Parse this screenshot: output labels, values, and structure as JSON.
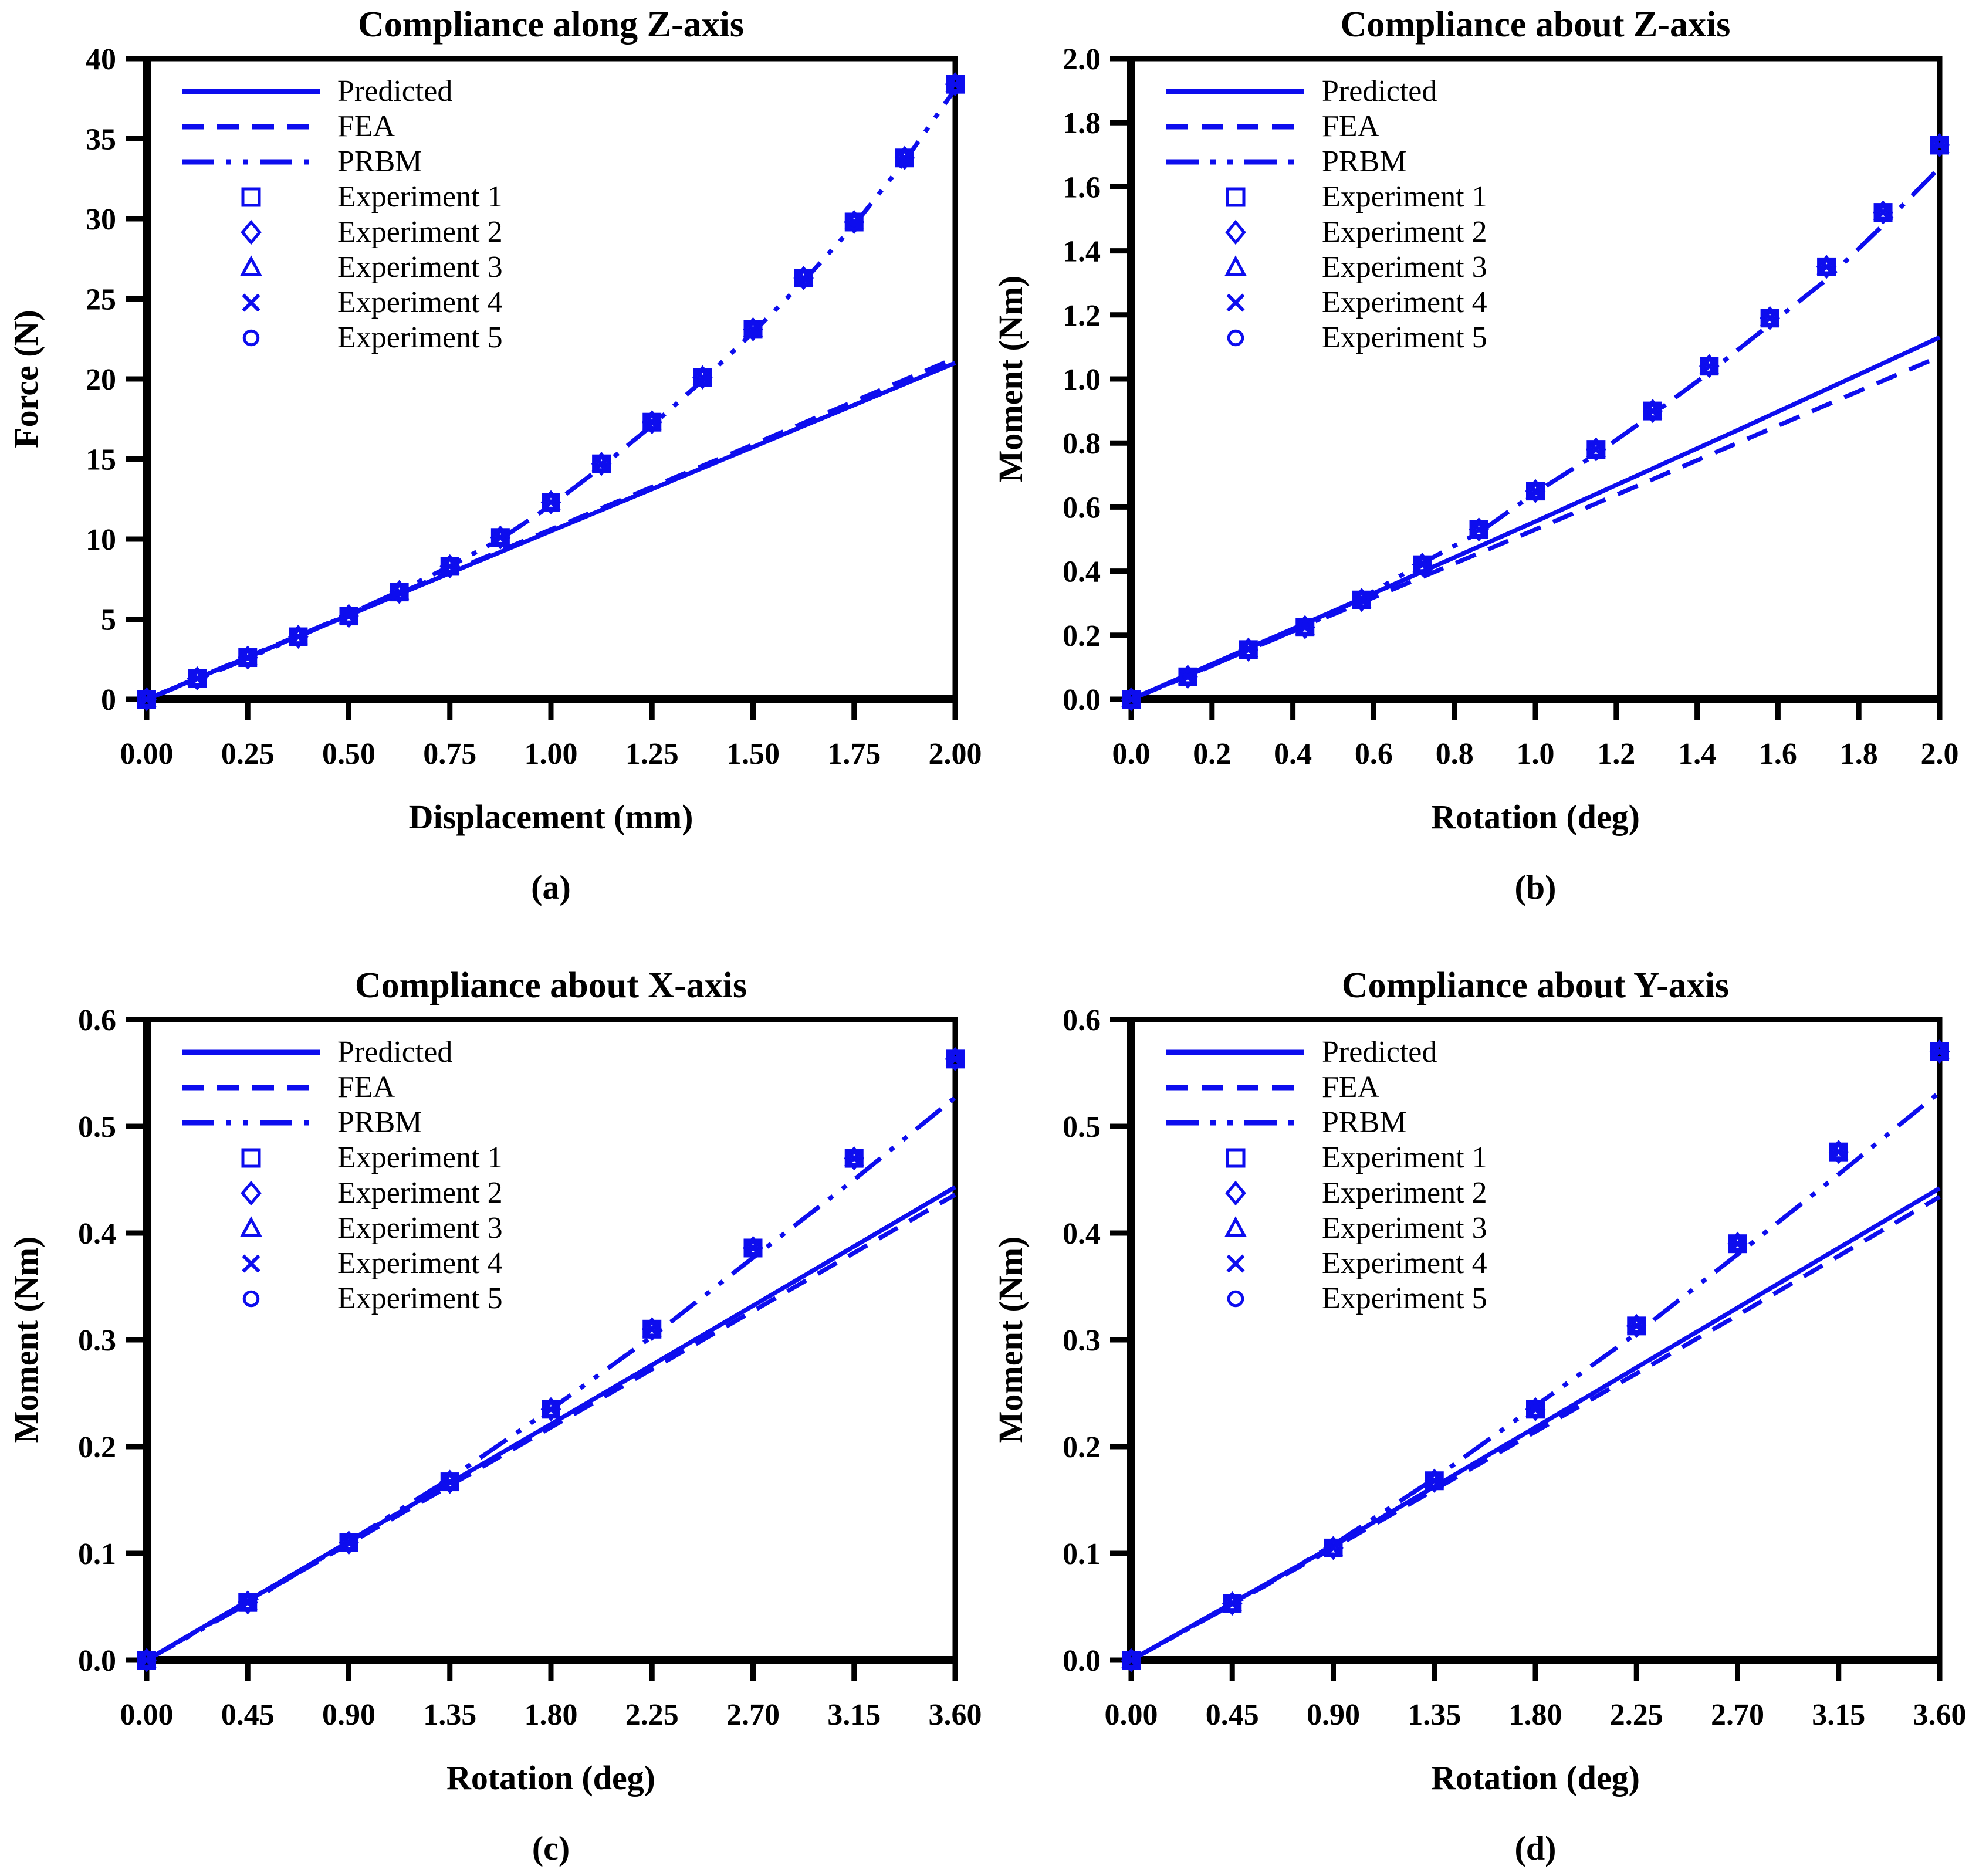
{
  "figure": {
    "background": "#ffffff",
    "accent_color": "#0d0dee",
    "frame_color": "#000000",
    "legend": [
      {
        "label": "Predicted",
        "kind": "line",
        "style": "solid"
      },
      {
        "label": "FEA",
        "kind": "line",
        "style": "dashed"
      },
      {
        "label": "PRBM",
        "kind": "line",
        "style": "dashdotdot"
      },
      {
        "label": "Experiment 1",
        "kind": "marker",
        "marker": "square"
      },
      {
        "label": "Experiment 2",
        "kind": "marker",
        "marker": "diamond"
      },
      {
        "label": "Experiment 3",
        "kind": "marker",
        "marker": "triangle"
      },
      {
        "label": "Experiment 4",
        "kind": "marker",
        "marker": "x"
      },
      {
        "label": "Experiment 5",
        "kind": "marker",
        "marker": "circle"
      }
    ]
  },
  "chart_data": [
    {
      "id": "a",
      "type": "line",
      "title": "Compliance along Z-axis",
      "xlabel": "Displacement (mm)",
      "ylabel": "Force (N)",
      "caption": "(a)",
      "xlim": [
        0,
        2
      ],
      "ylim": [
        0,
        40
      ],
      "xticks": [
        "0.00",
        "0.25",
        "0.50",
        "0.75",
        "1.00",
        "1.25",
        "1.50",
        "1.75",
        "2.00"
      ],
      "yticks": [
        "0",
        "5",
        "10",
        "15",
        "20",
        "25",
        "30",
        "35",
        "40"
      ],
      "grid": false,
      "legend_position": "top-left-inside",
      "series": [
        {
          "name": "Predicted",
          "style": "solid",
          "points": [
            [
              0,
              0
            ],
            [
              0.5,
              5.25
            ],
            [
              1.0,
              10.5
            ],
            [
              1.5,
              15.75
            ],
            [
              2.0,
              21.0
            ]
          ]
        },
        {
          "name": "FEA",
          "style": "dashed",
          "points": [
            [
              0,
              0
            ],
            [
              0.5,
              5.3
            ],
            [
              1.0,
              10.6
            ],
            [
              1.5,
              15.9
            ],
            [
              2.0,
              21.3
            ]
          ]
        },
        {
          "name": "PRBM",
          "style": "dashdotdot",
          "points": [
            [
              0,
              0
            ],
            [
              0.125,
              1.25
            ],
            [
              0.25,
              2.55
            ],
            [
              0.375,
              3.9
            ],
            [
              0.5,
              5.3
            ],
            [
              0.625,
              6.75
            ],
            [
              0.75,
              8.3
            ],
            [
              0.875,
              10.0
            ],
            [
              1.0,
              12.1
            ],
            [
              1.125,
              14.5
            ],
            [
              1.25,
              17.1
            ],
            [
              1.375,
              19.9
            ],
            [
              1.5,
              22.9
            ],
            [
              1.625,
              26.1
            ],
            [
              1.75,
              29.6
            ],
            [
              1.875,
              33.6
            ],
            [
              2.0,
              38.1
            ]
          ]
        }
      ],
      "experiments": {
        "names": [
          "Experiment 1",
          "Experiment 2",
          "Experiment 3",
          "Experiment 4",
          "Experiment 5"
        ],
        "markers": [
          "square",
          "diamond",
          "triangle",
          "x",
          "circle"
        ],
        "points": [
          [
            0,
            0
          ],
          [
            0.125,
            1.3
          ],
          [
            0.25,
            2.6
          ],
          [
            0.375,
            3.9
          ],
          [
            0.5,
            5.2
          ],
          [
            0.625,
            6.7
          ],
          [
            0.75,
            8.3
          ],
          [
            0.875,
            10.1
          ],
          [
            1.0,
            12.3
          ],
          [
            1.125,
            14.7
          ],
          [
            1.25,
            17.3
          ],
          [
            1.375,
            20.1
          ],
          [
            1.5,
            23.1
          ],
          [
            1.625,
            26.3
          ],
          [
            1.75,
            29.8
          ],
          [
            1.875,
            33.8
          ],
          [
            2.0,
            38.4
          ]
        ]
      }
    },
    {
      "id": "b",
      "type": "line",
      "title": "Compliance about Z-axis",
      "xlabel": "Rotation (deg)",
      "ylabel": "Moment (Nm)",
      "caption": "(b)",
      "xlim": [
        0,
        2
      ],
      "ylim": [
        0,
        2
      ],
      "xticks": [
        "0.0",
        "0.2",
        "0.4",
        "0.6",
        "0.8",
        "1.0",
        "1.2",
        "1.4",
        "1.6",
        "1.8",
        "2.0"
      ],
      "yticks": [
        "0.0",
        "0.2",
        "0.4",
        "0.6",
        "0.8",
        "1.0",
        "1.2",
        "1.4",
        "1.6",
        "1.8",
        "2.0"
      ],
      "grid": false,
      "legend_position": "top-left-inside",
      "series": [
        {
          "name": "Predicted",
          "style": "solid",
          "points": [
            [
              0,
              0
            ],
            [
              0.5,
              0.275
            ],
            [
              1.0,
              0.555
            ],
            [
              1.5,
              0.84
            ],
            [
              2.0,
              1.13
            ]
          ]
        },
        {
          "name": "FEA",
          "style": "dashed",
          "points": [
            [
              0,
              0
            ],
            [
              0.5,
              0.265
            ],
            [
              1.0,
              0.53
            ],
            [
              1.5,
              0.8
            ],
            [
              2.0,
              1.07
            ]
          ]
        },
        {
          "name": "PRBM",
          "style": "dashdotdot",
          "points": [
            [
              0,
              0
            ],
            [
              0.14,
              0.072
            ],
            [
              0.29,
              0.155
            ],
            [
              0.43,
              0.228
            ],
            [
              0.57,
              0.315
            ],
            [
              0.72,
              0.425
            ],
            [
              0.86,
              0.52
            ],
            [
              1.0,
              0.645
            ],
            [
              1.15,
              0.765
            ],
            [
              1.29,
              0.89
            ],
            [
              1.43,
              1.02
            ],
            [
              1.58,
              1.17
            ],
            [
              1.72,
              1.31
            ],
            [
              1.86,
              1.48
            ],
            [
              2.0,
              1.66
            ]
          ]
        }
      ],
      "experiments": {
        "names": [
          "Experiment 1",
          "Experiment 2",
          "Experiment 3",
          "Experiment 4",
          "Experiment 5"
        ],
        "markers": [
          "square",
          "diamond",
          "triangle",
          "x",
          "circle"
        ],
        "points": [
          [
            0,
            0
          ],
          [
            0.14,
            0.07
          ],
          [
            0.29,
            0.155
          ],
          [
            0.43,
            0.225
          ],
          [
            0.57,
            0.31
          ],
          [
            0.72,
            0.42
          ],
          [
            0.86,
            0.53
          ],
          [
            1.0,
            0.65
          ],
          [
            1.15,
            0.78
          ],
          [
            1.29,
            0.9
          ],
          [
            1.43,
            1.04
          ],
          [
            1.58,
            1.19
          ],
          [
            1.72,
            1.35
          ],
          [
            1.86,
            1.52
          ],
          [
            2.0,
            1.73
          ]
        ]
      }
    },
    {
      "id": "c",
      "type": "line",
      "title": "Compliance about X-axis",
      "xlabel": "Rotation (deg)",
      "ylabel": "Moment (Nm)",
      "caption": "(c)",
      "xlim": [
        0,
        3.6
      ],
      "ylim": [
        0,
        0.6
      ],
      "xticks": [
        "0.00",
        "0.45",
        "0.90",
        "1.35",
        "1.80",
        "2.25",
        "2.70",
        "3.15",
        "3.60"
      ],
      "yticks": [
        "0.0",
        "0.1",
        "0.2",
        "0.3",
        "0.4",
        "0.5",
        "0.6"
      ],
      "grid": false,
      "legend_position": "top-left-inside",
      "series": [
        {
          "name": "Predicted",
          "style": "solid",
          "points": [
            [
              0,
              0
            ],
            [
              0.9,
              0.111
            ],
            [
              1.8,
              0.221
            ],
            [
              2.7,
              0.332
            ],
            [
              3.6,
              0.443
            ]
          ]
        },
        {
          "name": "FEA",
          "style": "dashed",
          "points": [
            [
              0,
              0
            ],
            [
              0.9,
              0.109
            ],
            [
              1.8,
              0.218
            ],
            [
              2.7,
              0.327
            ],
            [
              3.6,
              0.436
            ]
          ]
        },
        {
          "name": "PRBM",
          "style": "dashdotdot",
          "points": [
            [
              0,
              0
            ],
            [
              0.45,
              0.053
            ],
            [
              0.9,
              0.111
            ],
            [
              1.35,
              0.17
            ],
            [
              1.8,
              0.235
            ],
            [
              2.25,
              0.303
            ],
            [
              2.7,
              0.377
            ],
            [
              3.15,
              0.45
            ],
            [
              3.6,
              0.527
            ]
          ]
        }
      ],
      "experiments": {
        "names": [
          "Experiment 1",
          "Experiment 2",
          "Experiment 3",
          "Experiment 4",
          "Experiment 5"
        ],
        "markers": [
          "square",
          "diamond",
          "triangle",
          "x",
          "circle"
        ],
        "points": [
          [
            0,
            0
          ],
          [
            0.45,
            0.054
          ],
          [
            0.9,
            0.11
          ],
          [
            1.35,
            0.167
          ],
          [
            1.8,
            0.235
          ],
          [
            2.25,
            0.31
          ],
          [
            2.7,
            0.386
          ],
          [
            3.15,
            0.47
          ],
          [
            3.6,
            0.563
          ]
        ]
      }
    },
    {
      "id": "d",
      "type": "line",
      "title": "Compliance about Y-axis",
      "xlabel": "Rotation (deg)",
      "ylabel": "Moment (Nm)",
      "caption": "(d)",
      "xlim": [
        0,
        3.6
      ],
      "ylim": [
        0,
        0.6
      ],
      "xticks": [
        "0.00",
        "0.45",
        "0.90",
        "1.35",
        "1.80",
        "2.25",
        "2.70",
        "3.15",
        "3.60"
      ],
      "yticks": [
        "0.0",
        "0.1",
        "0.2",
        "0.3",
        "0.4",
        "0.5",
        "0.6"
      ],
      "grid": false,
      "legend_position": "top-left-inside",
      "series": [
        {
          "name": "Predicted",
          "style": "solid",
          "points": [
            [
              0,
              0
            ],
            [
              0.9,
              0.107
            ],
            [
              1.8,
              0.218
            ],
            [
              2.7,
              0.33
            ],
            [
              3.6,
              0.442
            ]
          ]
        },
        {
          "name": "FEA",
          "style": "dashed",
          "points": [
            [
              0,
              0
            ],
            [
              0.9,
              0.105
            ],
            [
              1.8,
              0.214
            ],
            [
              2.7,
              0.323
            ],
            [
              3.6,
              0.434
            ]
          ]
        },
        {
          "name": "PRBM",
          "style": "dashdotdot",
          "points": [
            [
              0,
              0
            ],
            [
              0.45,
              0.052
            ],
            [
              0.9,
              0.108
            ],
            [
              1.35,
              0.17
            ],
            [
              1.8,
              0.238
            ],
            [
              2.25,
              0.306
            ],
            [
              2.7,
              0.38
            ],
            [
              3.15,
              0.455
            ],
            [
              3.6,
              0.532
            ]
          ]
        }
      ],
      "experiments": {
        "names": [
          "Experiment 1",
          "Experiment 2",
          "Experiment 3",
          "Experiment 4",
          "Experiment 5"
        ],
        "markers": [
          "square",
          "diamond",
          "triangle",
          "x",
          "circle"
        ],
        "points": [
          [
            0,
            0
          ],
          [
            0.45,
            0.053
          ],
          [
            0.9,
            0.105
          ],
          [
            1.35,
            0.168
          ],
          [
            1.8,
            0.235
          ],
          [
            2.25,
            0.313
          ],
          [
            2.7,
            0.39
          ],
          [
            3.15,
            0.476
          ],
          [
            3.6,
            0.57
          ]
        ]
      }
    }
  ]
}
